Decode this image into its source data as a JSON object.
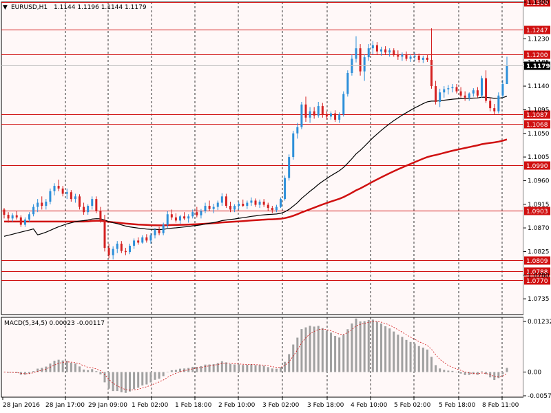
{
  "header": {
    "symbol": "EURUSD,H1",
    "ohlc": "1.1144 1.1196 1.1144 1.1179",
    "indicator_label": "MACD(5,34,5) 0.00023 -0.00117"
  },
  "colors": {
    "background": "#fff8f8",
    "bull": "#2d8fd9",
    "bear": "#d42020",
    "level_line": "#d01010",
    "ma_slow": "#d01010",
    "ma_fast": "#000000",
    "macd_bar": "#a0a0a0",
    "signal": "#d01010"
  },
  "chart_data": [
    {
      "type": "candlestick",
      "symbol": "EURUSD",
      "timeframe": "H1",
      "ylim": [
        1.0705,
        1.13
      ],
      "price_ticks": [
        "1.1300",
        "1.1230",
        "1.1185",
        "1.1140",
        "1.1095",
        "1.1050",
        "1.1005",
        "1.0960",
        "1.0915",
        "1.0870",
        "1.0825",
        "1.0780",
        "1.0735"
      ],
      "levels": [
        "1.1300",
        "1.1247",
        "1.1200",
        "1.1087",
        "1.1068",
        "1.0990",
        "1.0903",
        "1.0809",
        "1.0788",
        "1.0770"
      ],
      "current_price": "1.1179",
      "time_labels": [
        "28 Jan 2016",
        "28 Jan 17:00",
        "29 Jan 09:00",
        "1 Feb 02:00",
        "1 Feb 18:00",
        "2 Feb 10:00",
        "3 Feb 02:00",
        "3 Feb 18:00",
        "4 Feb 10:00",
        "5 Feb 02:00",
        "5 Feb 18:00",
        "8 Feb 11:00"
      ],
      "candles": [
        [
          1.0905,
          1.0908,
          1.0888,
          1.0895
        ],
        [
          1.0895,
          1.09,
          1.088,
          1.0888
        ],
        [
          1.0888,
          1.0898,
          1.0882,
          1.0894
        ],
        [
          1.0894,
          1.0902,
          1.0886,
          1.089
        ],
        [
          1.089,
          1.0894,
          1.0872,
          1.0876
        ],
        [
          1.0876,
          1.089,
          1.0872,
          1.0886
        ],
        [
          1.0886,
          1.09,
          1.0882,
          1.0896
        ],
        [
          1.0896,
          1.0915,
          1.0892,
          1.091
        ],
        [
          1.091,
          1.0925,
          1.09,
          1.0918
        ],
        [
          1.0918,
          1.093,
          1.0905,
          1.0912
        ],
        [
          1.0912,
          1.0925,
          1.0905,
          1.092
        ],
        [
          1.092,
          1.0945,
          1.0915,
          1.094
        ],
        [
          1.094,
          1.0955,
          1.0932,
          1.095
        ],
        [
          1.095,
          1.0962,
          1.094,
          1.0945
        ],
        [
          1.0945,
          1.095,
          1.093,
          1.0935
        ],
        [
          1.0935,
          1.0945,
          1.0925,
          1.0938
        ],
        [
          1.0938,
          1.0942,
          1.092,
          1.0925
        ],
        [
          1.0925,
          1.0935,
          1.0918,
          1.093
        ],
        [
          1.093,
          1.0934,
          1.0905,
          1.091
        ],
        [
          1.091,
          1.0918,
          1.0895,
          1.09
        ],
        [
          1.09,
          1.0915,
          1.0895,
          1.0912
        ],
        [
          1.0912,
          1.093,
          1.0905,
          1.0925
        ],
        [
          1.0925,
          1.093,
          1.0898,
          1.0902
        ],
        [
          1.0902,
          1.091,
          1.088,
          1.0885
        ],
        [
          1.0885,
          1.0895,
          1.0825,
          1.0832
        ],
        [
          1.0832,
          1.084,
          1.0812,
          1.0818
        ],
        [
          1.0818,
          1.0835,
          1.081,
          1.083
        ],
        [
          1.083,
          1.0845,
          1.0822,
          1.084
        ],
        [
          1.084,
          1.0845,
          1.0822,
          1.0826
        ],
        [
          1.0826,
          1.0832,
          1.0818,
          1.0824
        ],
        [
          1.0824,
          1.084,
          1.082,
          1.0836
        ],
        [
          1.0836,
          1.085,
          1.083,
          1.0846
        ],
        [
          1.0846,
          1.0852,
          1.0838,
          1.0842
        ],
        [
          1.0842,
          1.0856,
          1.084,
          1.0852
        ],
        [
          1.0852,
          1.0858,
          1.0842,
          1.0846
        ],
        [
          1.0846,
          1.086,
          1.084,
          1.0856
        ],
        [
          1.0856,
          1.087,
          1.085,
          1.0866
        ],
        [
          1.0866,
          1.0872,
          1.0856,
          1.086
        ],
        [
          1.086,
          1.088,
          1.0856,
          1.0876
        ],
        [
          1.0876,
          1.0902,
          1.087,
          1.0896
        ],
        [
          1.0896,
          1.0905,
          1.0885,
          1.089
        ],
        [
          1.089,
          1.0898,
          1.088,
          1.0884
        ],
        [
          1.0884,
          1.0895,
          1.0878,
          1.0892
        ],
        [
          1.0892,
          1.09,
          1.0885,
          1.0888
        ],
        [
          1.0888,
          1.0896,
          1.088,
          1.0892
        ],
        [
          1.0892,
          1.0905,
          1.0888,
          1.09
        ],
        [
          1.09,
          1.091,
          1.089,
          1.0894
        ],
        [
          1.0894,
          1.0906,
          1.0888,
          1.0902
        ],
        [
          1.0902,
          1.0918,
          1.0898,
          1.0912
        ],
        [
          1.0912,
          1.0922,
          1.0902,
          1.0906
        ],
        [
          1.0906,
          1.0916,
          1.0898,
          1.091
        ],
        [
          1.091,
          1.0922,
          1.0904,
          1.0918
        ],
        [
          1.0918,
          1.0936,
          1.0912,
          1.093
        ],
        [
          1.093,
          1.0935,
          1.0908,
          1.0912
        ],
        [
          1.0912,
          1.092,
          1.09,
          1.0905
        ],
        [
          1.0905,
          1.0915,
          1.09,
          1.0912
        ],
        [
          1.0912,
          1.092,
          1.0905,
          1.0916
        ],
        [
          1.0916,
          1.0924,
          1.091,
          1.0912
        ],
        [
          1.0912,
          1.0922,
          1.0906,
          1.0918
        ],
        [
          1.0918,
          1.0928,
          1.0912,
          1.0922
        ],
        [
          1.0922,
          1.0926,
          1.091,
          1.0914
        ],
        [
          1.0914,
          1.0924,
          1.0908,
          1.092
        ],
        [
          1.092,
          1.0925,
          1.091,
          1.0914
        ],
        [
          1.0914,
          1.0918,
          1.0902,
          1.0908
        ],
        [
          1.0908,
          1.0912,
          1.0898,
          1.0904
        ],
        [
          1.0904,
          1.0914,
          1.09,
          1.091
        ],
        [
          1.091,
          1.0928,
          1.0908,
          1.0925
        ],
        [
          1.0925,
          1.097,
          1.0922,
          1.0965
        ],
        [
          1.0965,
          1.101,
          1.096,
          1.1005
        ],
        [
          1.1005,
          1.1055,
          1.1,
          1.105
        ],
        [
          1.105,
          1.107,
          1.104,
          1.1062
        ],
        [
          1.1062,
          1.111,
          1.1058,
          1.1105
        ],
        [
          1.1105,
          1.112,
          1.1072,
          1.108
        ],
        [
          1.108,
          1.11,
          1.107,
          1.1092
        ],
        [
          1.1092,
          1.11,
          1.1078,
          1.1084
        ],
        [
          1.1084,
          1.111,
          1.108,
          1.1102
        ],
        [
          1.1102,
          1.1108,
          1.108,
          1.1086
        ],
        [
          1.1086,
          1.1092,
          1.1076,
          1.1082
        ],
        [
          1.1082,
          1.1092,
          1.1076,
          1.1088
        ],
        [
          1.1088,
          1.1094,
          1.1072,
          1.1076
        ],
        [
          1.1076,
          1.109,
          1.107,
          1.1086
        ],
        [
          1.1086,
          1.113,
          1.1082,
          1.1125
        ],
        [
          1.1125,
          1.117,
          1.112,
          1.1165
        ],
        [
          1.1165,
          1.12,
          1.116,
          1.1192
        ],
        [
          1.1192,
          1.1235,
          1.1185,
          1.1212
        ],
        [
          1.1212,
          1.122,
          1.116,
          1.1168
        ],
        [
          1.1168,
          1.12,
          1.115,
          1.1195
        ],
        [
          1.1195,
          1.122,
          1.1188,
          1.1212
        ],
        [
          1.1212,
          1.1226,
          1.12,
          1.1218
        ],
        [
          1.1218,
          1.1224,
          1.12,
          1.1206
        ],
        [
          1.1206,
          1.1215,
          1.1198,
          1.121
        ],
        [
          1.121,
          1.1216,
          1.12,
          1.1204
        ],
        [
          1.1204,
          1.1212,
          1.1196,
          1.1208
        ],
        [
          1.1208,
          1.1212,
          1.1196,
          1.12
        ],
        [
          1.12,
          1.1208,
          1.119,
          1.1196
        ],
        [
          1.1196,
          1.1204,
          1.1188,
          1.12
        ],
        [
          1.12,
          1.1206,
          1.1188,
          1.1192
        ],
        [
          1.1192,
          1.12,
          1.1186,
          1.1196
        ],
        [
          1.1196,
          1.1204,
          1.1188,
          1.1198
        ],
        [
          1.1198,
          1.1202,
          1.1185,
          1.119
        ],
        [
          1.119,
          1.1198,
          1.1184,
          1.1194
        ],
        [
          1.1194,
          1.12,
          1.1186,
          1.119
        ],
        [
          1.119,
          1.125,
          1.1135,
          1.114
        ],
        [
          1.114,
          1.115,
          1.1105,
          1.111
        ],
        [
          1.111,
          1.1135,
          1.11,
          1.1128
        ],
        [
          1.1128,
          1.114,
          1.1118,
          1.1134
        ],
        [
          1.1134,
          1.1142,
          1.1124,
          1.1136
        ],
        [
          1.1136,
          1.1144,
          1.1128,
          1.1138
        ],
        [
          1.1138,
          1.1144,
          1.1126,
          1.113
        ],
        [
          1.113,
          1.1138,
          1.1118,
          1.1122
        ],
        [
          1.1122,
          1.113,
          1.1112,
          1.1118
        ],
        [
          1.1118,
          1.1128,
          1.1112,
          1.1126
        ],
        [
          1.1126,
          1.1136,
          1.112,
          1.1132
        ],
        [
          1.1132,
          1.1138,
          1.1118,
          1.1122
        ],
        [
          1.1122,
          1.116,
          1.1118,
          1.1155
        ],
        [
          1.1155,
          1.117,
          1.1108,
          1.1112
        ],
        [
          1.1112,
          1.1118,
          1.1092,
          1.1098
        ],
        [
          1.1098,
          1.1106,
          1.1086,
          1.1092
        ],
        [
          1.1092,
          1.1128,
          1.1088,
          1.1122
        ],
        [
          1.1122,
          1.1152,
          1.1118,
          1.1144
        ],
        [
          1.1144,
          1.1196,
          1.1144,
          1.1179
        ]
      ],
      "ma_fast_label": "",
      "ma_slow_label": ""
    },
    {
      "type": "macd",
      "label": "MACD(5,34,5) 0.00023 -0.00117",
      "y_ticks": [
        "0.01232",
        "0.00",
        "-0.00579"
      ],
      "ylim": [
        -0.00579,
        0.01232
      ]
    }
  ]
}
